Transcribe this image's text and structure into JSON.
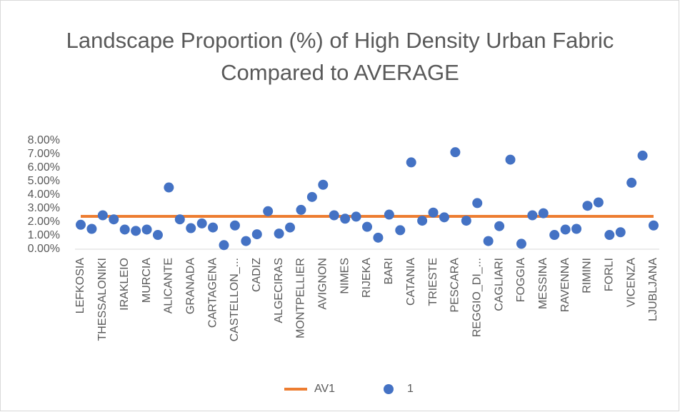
{
  "chart_data": {
    "type": "scatter",
    "title": "Landscape Proportion (%) of High Density Urban Fabric Compared to AVERAGE",
    "categories": [
      "LEFKOSIA",
      null,
      "THESSALONIKI",
      null,
      "IRAKLEIO",
      null,
      "MURCIA",
      null,
      "ALICANTE",
      null,
      "GRANADA",
      null,
      "CARTAGENA",
      null,
      "CASTELLON_...",
      null,
      "CADIZ",
      null,
      "ALGECIRAS",
      null,
      "MONTPELLIER",
      null,
      "AVIGNON",
      null,
      "NIMES",
      null,
      "RIJEKA",
      null,
      "BARI",
      null,
      "CATANIA",
      null,
      "TRIESTE",
      null,
      "PESCARA",
      null,
      "REGGIO_DI_...",
      null,
      "CAGLIARI",
      null,
      "FOGGIA",
      null,
      "MESSINA",
      null,
      "RAVENNA",
      null,
      "RIMINI",
      null,
      "FORLI",
      null,
      "VICENZA",
      null,
      "LJUBLJANA"
    ],
    "series": [
      {
        "name": "AV1",
        "kind": "line",
        "color": "#ed7d31",
        "values": [
          2.42,
          2.42,
          2.42,
          2.42,
          2.42,
          2.42,
          2.42,
          2.42,
          2.42,
          2.42,
          2.42,
          2.42,
          2.42,
          2.42,
          2.42,
          2.42,
          2.42,
          2.42,
          2.42,
          2.42,
          2.42,
          2.42,
          2.42,
          2.42,
          2.42,
          2.42,
          2.42,
          2.42,
          2.42,
          2.42,
          2.42,
          2.42,
          2.42,
          2.42,
          2.42,
          2.42,
          2.42,
          2.42,
          2.42,
          2.42,
          2.42,
          2.42,
          2.42,
          2.42,
          2.42,
          2.42,
          2.42,
          2.42,
          2.42,
          2.42,
          2.42,
          2.42,
          2.42
        ]
      },
      {
        "name": "1",
        "kind": "scatter",
        "color": "#4472c4",
        "values": [
          1.8,
          1.5,
          2.5,
          2.2,
          1.45,
          1.35,
          1.45,
          1.05,
          4.55,
          2.2,
          1.55,
          1.9,
          1.6,
          0.3,
          1.75,
          0.6,
          1.1,
          2.8,
          1.15,
          1.6,
          2.9,
          3.85,
          4.75,
          2.5,
          2.25,
          2.4,
          1.65,
          0.85,
          2.55,
          1.4,
          6.4,
          2.1,
          2.7,
          2.35,
          7.15,
          2.1,
          3.4,
          0.6,
          1.7,
          6.6,
          0.4,
          2.5,
          2.65,
          1.05,
          1.45,
          1.5,
          3.2,
          3.45,
          1.05,
          1.25,
          4.9,
          6.9,
          1.75
        ]
      }
    ],
    "ylim": [
      0,
      8
    ],
    "yticks": [
      {
        "value": 0,
        "label": "0.00%"
      },
      {
        "value": 1,
        "label": "1.00%"
      },
      {
        "value": 2,
        "label": "2.00%"
      },
      {
        "value": 3,
        "label": "3.00%"
      },
      {
        "value": 4,
        "label": "4.00%"
      },
      {
        "value": 5,
        "label": "5.00%"
      },
      {
        "value": 6,
        "label": "6.00%"
      },
      {
        "value": 7,
        "label": "7.00%"
      },
      {
        "value": 8,
        "label": "8.00%"
      }
    ],
    "grid": false,
    "legend": "bottom"
  }
}
